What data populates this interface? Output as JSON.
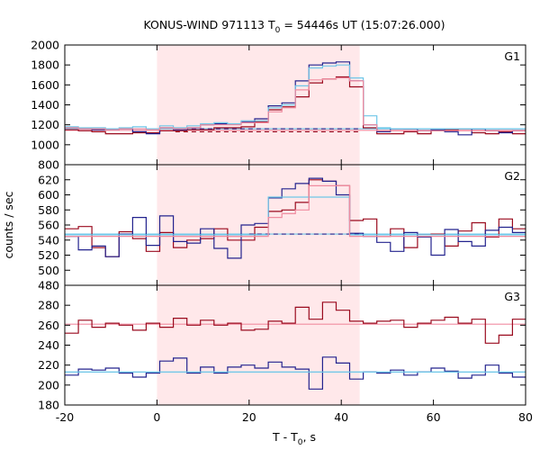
{
  "chart_data": {
    "type": "line",
    "title_main": "KONUS-WIND 971113 T",
    "title_sub": "0",
    "title_rest": " = 54446s UT (15:07:26.000)",
    "xlabel_main": "T - T",
    "xlabel_sub": "0",
    "xlabel_rest": ", s",
    "ylabel": "counts / sec",
    "xlim": [
      -20,
      80
    ],
    "xticks": [
      "-20",
      "0",
      "20",
      "40",
      "60",
      "80"
    ],
    "highlight": {
      "x_start": 0,
      "x_end": 44,
      "color": "#ffe8ea"
    },
    "colors": {
      "dark_red": "#9a0a1e",
      "dark_blue": "#23238e",
      "light_blue": "#6ec6e8",
      "pink": "#f08ca0"
    },
    "panels": [
      {
        "name": "G1",
        "ylim": [
          800,
          2000
        ],
        "yticks": [
          "800",
          "1000",
          "1200",
          "1400",
          "1600",
          "1800",
          "2000"
        ],
        "bins": {
          "x0": -20,
          "width": 2.944
        },
        "series": [
          {
            "color": "#9a0a1e",
            "values": [
              1150,
              1140,
              1130,
              1110,
              1110,
              1120,
              1120,
              1140,
              1140,
              1150,
              1150,
              1170,
              1170,
              1180,
              1230,
              1350,
              1380,
              1480,
              1620,
              1660,
              1680,
              1580,
              1170,
              1110,
              1110,
              1130,
              1110,
              1140,
              1150,
              1160,
              1120,
              1110,
              1130,
              1110,
              1130
            ]
          },
          {
            "color": "#23238e",
            "values": [
              1170,
              1160,
              1150,
              1150,
              1160,
              1130,
              1110,
              1170,
              1150,
              1170,
              1200,
              1210,
              1210,
              1230,
              1260,
              1390,
              1420,
              1640,
              1800,
              1820,
              1830,
              1640,
              1200,
              1130,
              1160,
              1160,
              1140,
              1150,
              1130,
              1100,
              1160,
              1140,
              1120,
              1140,
              1150
            ]
          },
          {
            "color": "#6ec6e8",
            "values": [
              1180,
              1170,
              1170,
              1160,
              1170,
              1180,
              1160,
              1190,
              1170,
              1190,
              1210,
              1220,
              1210,
              1240,
              1240,
              1370,
              1400,
              1590,
              1770,
              1790,
              1800,
              1670,
              1290,
              1170,
              1160,
              1160,
              1160,
              1160,
              1160,
              1160,
              1160,
              1160,
              1160,
              1160,
              1160
            ]
          },
          {
            "color": "#f08ca0",
            "values": [
              1170,
              1160,
              1160,
              1150,
              1160,
              1160,
              1150,
              1170,
              1160,
              1170,
              1200,
              1200,
              1200,
              1220,
              1220,
              1330,
              1370,
              1550,
              1650,
              1660,
              1670,
              1640,
              1200,
              1140,
              1140,
              1140,
              1140,
              1140,
              1140,
              1140,
              1140,
              1140,
              1140,
              1140,
              1140
            ]
          }
        ],
        "baselines": [
          {
            "color": "#6ec6e8",
            "y": 1160,
            "style": "solid",
            "x_start": -20,
            "x_end": 80
          },
          {
            "color": "#f08ca0",
            "y": 1145,
            "style": "solid",
            "x_start": -20,
            "x_end": 80
          },
          {
            "color": "#23238e",
            "y": 1160,
            "style": "dashed",
            "x_start": 4,
            "x_end": 44
          },
          {
            "color": "#9a0a1e",
            "y": 1130,
            "style": "dashed",
            "x_start": 4,
            "x_end": 44
          }
        ]
      },
      {
        "name": "G2",
        "ylim": [
          480,
          640
        ],
        "yticks": [
          "480",
          "500",
          "520",
          "540",
          "560",
          "580",
          "600",
          "620"
        ],
        "bins": {
          "x0": -20,
          "width": 2.944
        },
        "series": [
          {
            "color": "#9a0a1e",
            "values": [
              555,
              558,
              530,
              518,
              551,
              542,
              525,
              550,
              530,
              540,
              542,
              555,
              540,
              540,
              557,
              578,
              580,
              590,
              620,
              618,
              612,
              566,
              568,
              545,
              555,
              530,
              547,
              548,
              532,
              552,
              563,
              544,
              568,
              555,
              545
            ]
          },
          {
            "color": "#23238e",
            "values": [
              545,
              527,
              532,
              518,
              548,
              570,
              533,
              572,
              538,
              536,
              555,
              529,
              516,
              560,
              562,
              596,
              608,
              615,
              622,
              618,
              600,
              549,
              545,
              537,
              525,
              550,
              544,
              520,
              554,
              538,
              532,
              553,
              557,
              550,
              536
            ]
          },
          {
            "color": "#6ec6e8",
            "values": [
              547,
              547,
              547,
              547,
              547,
              547,
              547,
              547,
              547,
              547,
              547,
              547,
              547,
              547,
              547,
              597,
              597,
              597,
              597,
              597,
              597,
              547,
              547,
              547,
              547,
              547,
              547,
              547,
              547,
              547,
              547,
              547,
              547,
              547,
              547
            ]
          },
          {
            "color": "#f08ca0",
            "values": [
              545,
              545,
              545,
              545,
              545,
              545,
              545,
              545,
              545,
              545,
              545,
              545,
              545,
              545,
              545,
              570,
              575,
              580,
              612,
              612,
              612,
              545,
              545,
              545,
              545,
              545,
              545,
              545,
              545,
              545,
              545,
              545,
              545,
              545,
              545
            ]
          }
        ],
        "baselines": [
          {
            "color": "#6ec6e8",
            "y": 548,
            "style": "solid",
            "x_start": -20,
            "x_end": 80
          },
          {
            "color": "#23238e",
            "y": 548,
            "style": "dashed",
            "x_start": 20,
            "x_end": 44
          }
        ]
      },
      {
        "name": "G3",
        "ylim": [
          180,
          300
        ],
        "yticks": [
          "180",
          "200",
          "220",
          "240",
          "260",
          "280"
        ],
        "bins": {
          "x0": -20,
          "width": 2.944
        },
        "series": [
          {
            "color": "#9a0a1e",
            "values": [
              252,
              265,
              258,
              262,
              260,
              255,
              262,
              258,
              267,
              260,
              265,
              260,
              262,
              255,
              256,
              264,
              262,
              278,
              266,
              283,
              275,
              264,
              262,
              264,
              265,
              258,
              262,
              265,
              268,
              262,
              266,
              242,
              250,
              266,
              262
            ]
          },
          {
            "color": "#23238e",
            "values": [
              210,
              216,
              215,
              217,
              212,
              208,
              212,
              224,
              227,
              212,
              218,
              212,
              218,
              220,
              217,
              223,
              218,
              216,
              196,
              228,
              222,
              206,
              213,
              212,
              215,
              210,
              213,
              217,
              214,
              207,
              210,
              220,
              212,
              208,
              216
            ]
          },
          {
            "color": "#6ec6e8",
            "values": [
              213,
              213,
              213,
              213,
              213,
              213,
              213,
              213,
              213,
              213,
              213,
              213,
              213,
              213,
              213,
              213,
              213,
              213,
              213,
              213,
              213,
              213,
              213,
              213,
              213,
              213,
              213,
              213,
              213,
              213,
              213,
              213,
              213,
              213,
              213
            ]
          }
        ],
        "baselines": [
          {
            "color": "#f08ca0",
            "y": 261,
            "style": "solid",
            "x_start": -20,
            "x_end": 80
          },
          {
            "color": "#6ec6e8",
            "y": 213,
            "style": "solid",
            "x_start": -20,
            "x_end": 80
          }
        ]
      }
    ]
  }
}
